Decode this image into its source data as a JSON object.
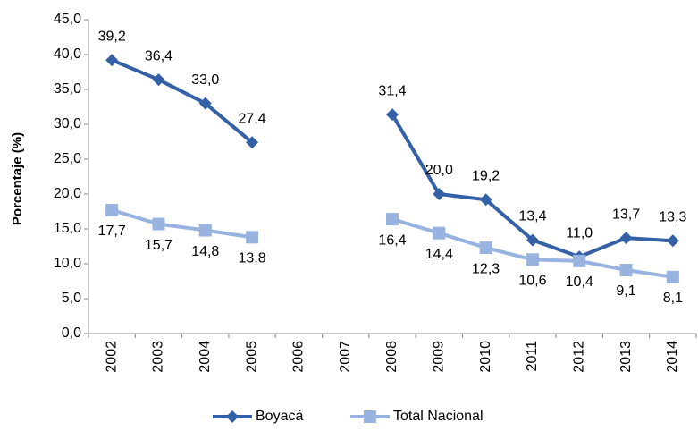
{
  "chart_data": {
    "type": "line",
    "y_label": "Porcentaje (%)",
    "categories": [
      "2002",
      "2003",
      "2004",
      "2005",
      "2006",
      "2007",
      "2008",
      "2009",
      "2010",
      "2011",
      "2012",
      "2013",
      "2014"
    ],
    "series": [
      {
        "name": "Boyacá",
        "color": "#3461a6",
        "marker": "diamond",
        "values": [
          39.2,
          36.4,
          33.0,
          27.4,
          null,
          null,
          31.4,
          20.0,
          19.2,
          13.4,
          11.0,
          13.7,
          13.3
        ],
        "value_labels": [
          "39,2",
          "36,4",
          "33,0",
          "27,4",
          null,
          null,
          "31,4",
          "20,0",
          "19,2",
          "13,4",
          "11,0",
          "13,7",
          "13,3"
        ]
      },
      {
        "name": "Total Nacional",
        "color": "#98b3df",
        "marker": "square",
        "values": [
          17.7,
          15.7,
          14.8,
          13.8,
          null,
          null,
          16.4,
          14.4,
          12.3,
          10.6,
          10.4,
          9.1,
          8.1
        ],
        "value_labels": [
          "17,7",
          "15,7",
          "14,8",
          "13,8",
          null,
          null,
          "16,4",
          "14,4",
          "12,3",
          "10,6",
          "10,4",
          "9,1",
          "8,1"
        ]
      }
    ],
    "ylim": [
      0,
      45
    ],
    "yticks": [
      {
        "value": 0,
        "label": "0,0"
      },
      {
        "value": 5,
        "label": "5,0"
      },
      {
        "value": 10,
        "label": "10,0"
      },
      {
        "value": 15,
        "label": "15,0"
      },
      {
        "value": 20,
        "label": "20,0"
      },
      {
        "value": 25,
        "label": "25,0"
      },
      {
        "value": 30,
        "label": "30,0"
      },
      {
        "value": 35,
        "label": "35,0"
      },
      {
        "value": 40,
        "label": "40,0"
      },
      {
        "value": 45,
        "label": "45,0"
      }
    ],
    "grid": false,
    "legend": "bottom"
  }
}
